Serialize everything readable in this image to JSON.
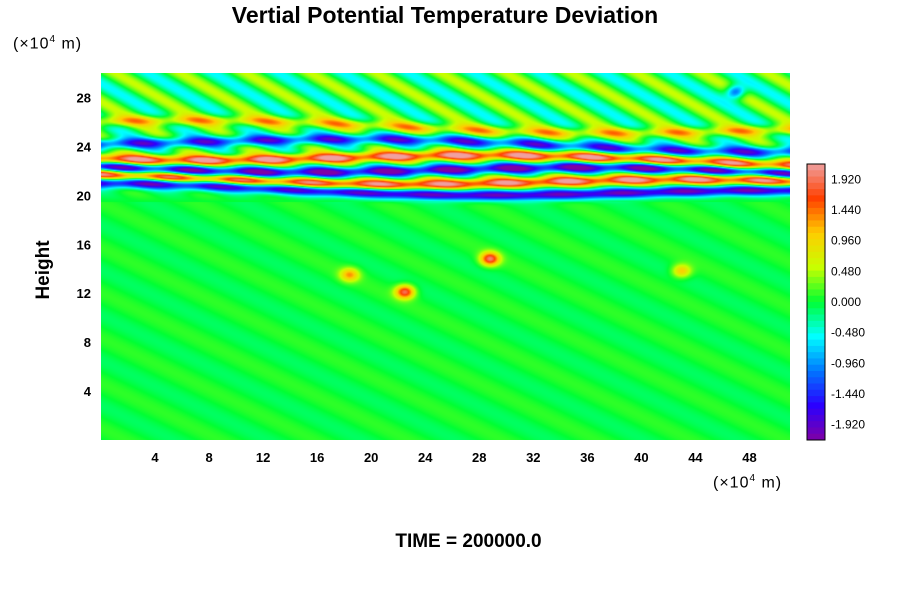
{
  "chart_data": {
    "type": "heatmap",
    "title": "Vertial Potential Temperature Deviation",
    "ylabel": "Height",
    "xlabel": "",
    "x_unit": {
      "prefix": "(×10",
      "exp": "4",
      "suffix": " m)"
    },
    "y_unit": {
      "prefix": "(×10",
      "exp": "4",
      "suffix": " m)"
    },
    "xlim": [
      0,
      51
    ],
    "ylim": [
      0,
      30
    ],
    "x_ticks": [
      "4",
      "8",
      "12",
      "16",
      "20",
      "24",
      "28",
      "32",
      "36",
      "40",
      "44",
      "48"
    ],
    "y_ticks": [
      "4",
      "8",
      "12",
      "16",
      "20",
      "24",
      "28"
    ],
    "colorbar": {
      "range": [
        -2.16,
        2.16
      ],
      "tick_labels": [
        "1.920",
        "1.440",
        "0.960",
        "0.480",
        "0.000",
        "-0.480",
        "-0.960",
        "-1.440",
        "-1.920"
      ]
    },
    "field_description": {
      "background": 0.0,
      "features": [
        {
          "kind": "band",
          "y_center": 20.4,
          "value": -1.92
        },
        {
          "kind": "band",
          "y_center": 21.2,
          "value": 1.92
        },
        {
          "kind": "band",
          "y_center": 22.1,
          "value": -1.92
        },
        {
          "kind": "band",
          "y_center": 23.0,
          "value": 1.92
        },
        {
          "kind": "band",
          "y_center": 24.2,
          "value": -1.44
        },
        {
          "kind": "band",
          "y_center": 25.6,
          "value": 0.96
        },
        {
          "kind": "spot",
          "x": 28.8,
          "y": 14.8,
          "value": 1.92
        },
        {
          "kind": "spot",
          "x": 22.5,
          "y": 12.1,
          "value": 1.9
        },
        {
          "kind": "spot",
          "x": 18.4,
          "y": 13.5,
          "value": 1.2
        },
        {
          "kind": "spot",
          "x": 43.0,
          "y": 13.8,
          "value": 1.1
        },
        {
          "kind": "spot",
          "x": 47.0,
          "y": 28.5,
          "value": -1.6
        }
      ]
    }
  },
  "footer": {
    "time_label": "TIME = 200000.0"
  },
  "colors": {
    "scale": [
      "#7f00a5",
      "#2b00ff",
      "#0077ff",
      "#00ffff",
      "#00ff33",
      "#c8ff00",
      "#ffcc00",
      "#ff4000",
      "#f0a0a0"
    ]
  }
}
